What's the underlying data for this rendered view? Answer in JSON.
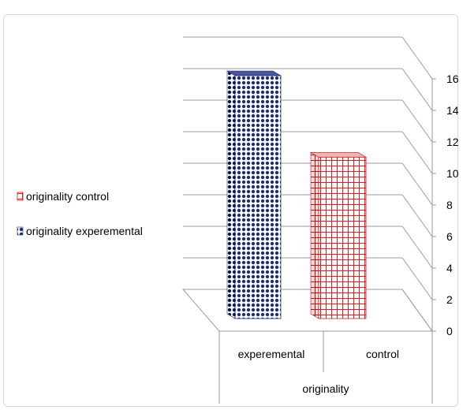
{
  "chart_data": {
    "type": "bar",
    "title": "",
    "ylabel": "",
    "xlabel": "originality",
    "categories": [
      "experemental",
      "control"
    ],
    "values": [
      15.5,
      10.3
    ],
    "ylim": [
      0,
      16
    ],
    "yticks": [
      "0",
      "2",
      "4",
      "6",
      "8",
      "10",
      "12",
      "14",
      "16"
    ],
    "grid": true,
    "legend_position": "left",
    "series": [
      {
        "name": "originality control",
        "color": "#e41a1c",
        "pattern": "grid",
        "category": "control"
      },
      {
        "name": "originality experemental",
        "color": "#1f2d7a",
        "pattern": "dots",
        "category": "experemental"
      }
    ]
  }
}
